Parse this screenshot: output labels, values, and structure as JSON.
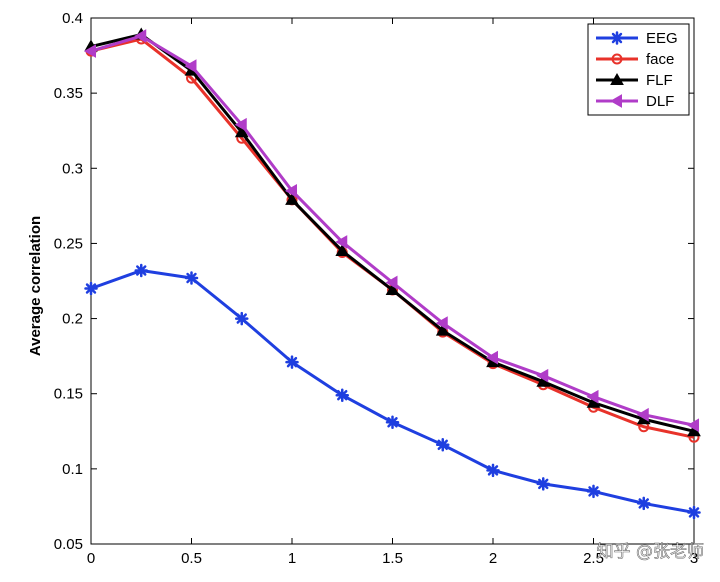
{
  "watermark": "知乎 @张老师",
  "chart_data": {
    "type": "line",
    "title": "",
    "xlabel": "",
    "ylabel": "Average correlation",
    "xlim": [
      0,
      3
    ],
    "ylim": [
      0.05,
      0.4
    ],
    "xticks": [
      0,
      0.5,
      1,
      1.5,
      2,
      2.5,
      3
    ],
    "xtick_labels": [
      "0",
      "0.5",
      "1",
      "1.5",
      "2",
      "2.5",
      "3"
    ],
    "yticks": [
      0.05,
      0.1,
      0.15,
      0.2,
      0.25,
      0.3,
      0.35,
      0.4
    ],
    "ytick_labels": [
      "0.05",
      "0.1",
      "0.15",
      "0.2",
      "0.25",
      "0.3",
      "0.35",
      "0.4"
    ],
    "grid": false,
    "legend_position": "top-right",
    "x": [
      0,
      0.25,
      0.5,
      0.75,
      1,
      1.25,
      1.5,
      1.75,
      2,
      2.25,
      2.5,
      2.75,
      3
    ],
    "series": [
      {
        "name": "EEG",
        "color": "#1f3fe0",
        "marker": "asterisk",
        "values": [
          0.22,
          0.232,
          0.227,
          0.2,
          0.171,
          0.149,
          0.131,
          0.116,
          0.099,
          0.09,
          0.085,
          0.077,
          0.071
        ]
      },
      {
        "name": "face",
        "color": "#e8322a",
        "marker": "circle",
        "values": [
          0.378,
          0.386,
          0.36,
          0.32,
          0.279,
          0.244,
          0.219,
          0.191,
          0.17,
          0.156,
          0.141,
          0.128,
          0.121
        ]
      },
      {
        "name": "FLF",
        "color": "#000000",
        "marker": "triangle-up",
        "values": [
          0.381,
          0.389,
          0.365,
          0.324,
          0.279,
          0.245,
          0.219,
          0.192,
          0.171,
          0.158,
          0.144,
          0.133,
          0.125
        ]
      },
      {
        "name": "DLF",
        "color": "#b03cc8",
        "marker": "triangle-left",
        "values": [
          0.378,
          0.388,
          0.368,
          0.329,
          0.285,
          0.251,
          0.224,
          0.197,
          0.174,
          0.162,
          0.148,
          0.136,
          0.129
        ]
      }
    ]
  }
}
